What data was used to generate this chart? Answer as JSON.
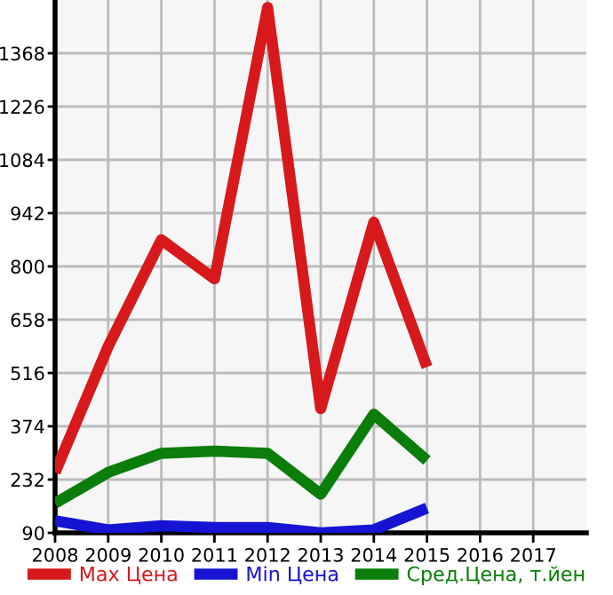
{
  "chart_data": {
    "type": "line",
    "x": [
      2008,
      2009,
      2010,
      2011,
      2012,
      2013,
      2014,
      2015
    ],
    "series": [
      {
        "name": "Max Цена",
        "color": "#d7191c",
        "values": [
          251,
          587,
          871,
          767,
          1490,
          421,
          918,
          532
        ]
      },
      {
        "name": "Min Цена",
        "color": "#1414d2",
        "values": [
          122,
          98,
          109,
          104,
          104,
          90,
          98,
          156
        ]
      },
      {
        "name": "Сред.Цена, т.йен",
        "color": "#0a7d0a",
        "values": [
          169,
          251,
          302,
          308,
          302,
          193,
          406,
          283
        ]
      }
    ],
    "xlim": [
      2008,
      2018
    ],
    "xticks": [
      2008,
      2009,
      2010,
      2011,
      2012,
      2013,
      2014,
      2015,
      2016,
      2017
    ],
    "ylim": [
      90,
      1510
    ],
    "yticks": [
      90,
      232,
      374,
      516,
      658,
      800,
      942,
      1084,
      1226,
      1368
    ],
    "grid": true,
    "legend": "bottom",
    "marker": "none",
    "line_style": "solid"
  }
}
